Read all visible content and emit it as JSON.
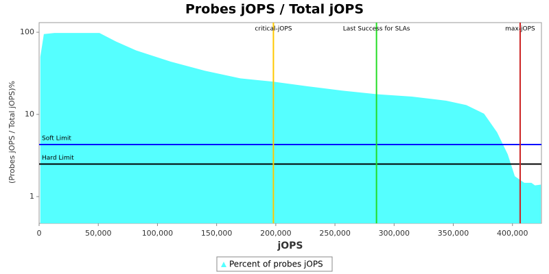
{
  "chart_data": {
    "type": "area",
    "title": "Probes jOPS / Total jOPS",
    "xlabel": "jOPS",
    "ylabel": "(Probes jOPS / Total jOPS)%",
    "log_y": true,
    "legend": "bottom",
    "x": [
      1000,
      4000,
      13000,
      51000,
      65000,
      82000,
      111000,
      140000,
      170000,
      198000,
      227000,
      256000,
      286000,
      315000,
      344000,
      361000,
      376000,
      387000,
      396000,
      402000,
      410000,
      416000,
      419000,
      424000
    ],
    "series": [
      {
        "name": "Percent of probes jOPS",
        "color": "#55ffff",
        "values": [
          50,
          95,
          98,
          98,
          77,
          60,
          44,
          34,
          27.5,
          25,
          22,
          19.5,
          17.6,
          16.5,
          14.7,
          13,
          10.2,
          6.06,
          3.27,
          1.77,
          1.47,
          1.47,
          1.37,
          1.4
        ]
      }
    ],
    "xlim": [
      0,
      424500
    ],
    "ylim": [
      0.473,
      131
    ],
    "xticks": [
      0,
      {
        "value": 50000,
        "label": "50,000"
      },
      {
        "value": 100000,
        "label": "100,000"
      },
      {
        "value": 150000,
        "label": "150,000"
      },
      {
        "value": 200000,
        "label": "200,000"
      },
      {
        "value": 250000,
        "label": "250,000"
      },
      {
        "value": 300000,
        "label": "300,000"
      },
      {
        "value": 350000,
        "label": "350,000"
      },
      {
        "value": 400000,
        "label": "400,000"
      }
    ],
    "yticks": [
      1,
      10,
      100
    ],
    "vlines": [
      {
        "label": "critical-jOPS",
        "value": 198000,
        "color": "#ffc800"
      },
      {
        "label": "Last Success for SLAs",
        "value": 285100,
        "color": "#22dd22"
      },
      {
        "label": "max-jOPS",
        "value": 406500,
        "color": "#cc2222"
      }
    ],
    "hlines": [
      {
        "label": "Soft Limit",
        "value": 4.3,
        "color": "#0000ff"
      },
      {
        "label": "Hard Limit",
        "value": 2.49,
        "color": "#000000"
      }
    ]
  }
}
